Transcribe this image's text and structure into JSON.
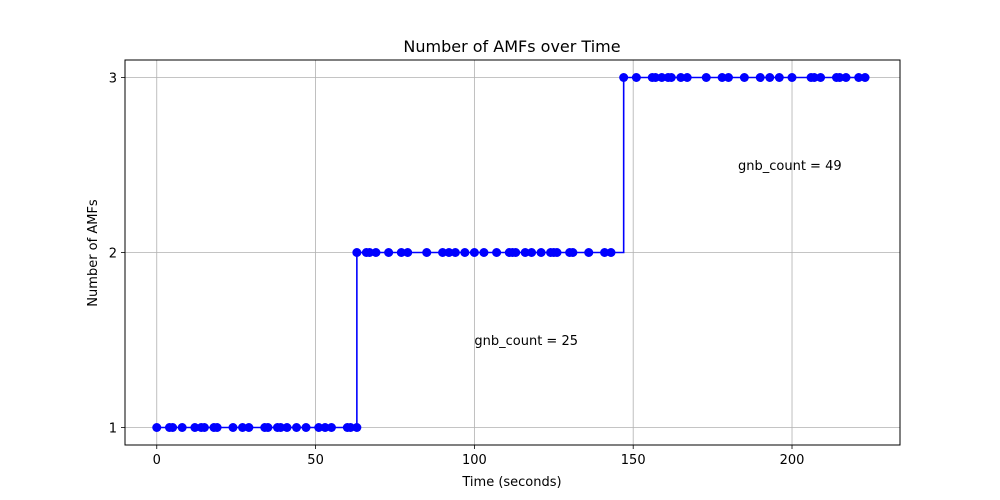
{
  "chart_data": {
    "type": "line",
    "title": "Number of AMFs over Time",
    "xlabel": "Time (seconds)",
    "ylabel": "Number of AMFs",
    "xlim": [
      -10,
      234
    ],
    "ylim": [
      0.9,
      3.1
    ],
    "xticks": [
      0,
      50,
      100,
      150,
      200
    ],
    "xtick_labels": [
      "0",
      "50",
      "100",
      "150",
      "200"
    ],
    "yticks": [
      1,
      2,
      3
    ],
    "ytick_labels": [
      "1",
      "2",
      "3"
    ],
    "grid": true,
    "line_style": "step-post",
    "series": [
      {
        "color": "#0000ff",
        "marker": "circle",
        "points": [
          [
            0,
            1
          ],
          [
            4,
            1
          ],
          [
            5,
            1
          ],
          [
            8,
            1
          ],
          [
            12,
            1
          ],
          [
            14,
            1
          ],
          [
            15,
            1
          ],
          [
            18,
            1
          ],
          [
            19,
            1
          ],
          [
            24,
            1
          ],
          [
            27,
            1
          ],
          [
            29,
            1
          ],
          [
            34,
            1
          ],
          [
            35,
            1
          ],
          [
            38,
            1
          ],
          [
            39,
            1
          ],
          [
            41,
            1
          ],
          [
            44,
            1
          ],
          [
            47,
            1
          ],
          [
            51,
            1
          ],
          [
            53,
            1
          ],
          [
            55,
            1
          ],
          [
            60,
            1
          ],
          [
            61,
            1
          ],
          [
            63,
            1
          ],
          [
            63,
            2
          ],
          [
            66,
            2
          ],
          [
            67,
            2
          ],
          [
            69,
            2
          ],
          [
            73,
            2
          ],
          [
            77,
            2
          ],
          [
            79,
            2
          ],
          [
            85,
            2
          ],
          [
            90,
            2
          ],
          [
            92,
            2
          ],
          [
            94,
            2
          ],
          [
            97,
            2
          ],
          [
            100,
            2
          ],
          [
            103,
            2
          ],
          [
            107,
            2
          ],
          [
            111,
            2
          ],
          [
            112,
            2
          ],
          [
            113,
            2
          ],
          [
            116,
            2
          ],
          [
            118,
            2
          ],
          [
            121,
            2
          ],
          [
            124,
            2
          ],
          [
            125,
            2
          ],
          [
            126,
            2
          ],
          [
            130,
            2
          ],
          [
            131,
            2
          ],
          [
            136,
            2
          ],
          [
            141,
            2
          ],
          [
            143,
            2
          ],
          [
            147,
            3
          ],
          [
            151,
            3
          ],
          [
            156,
            3
          ],
          [
            157,
            3
          ],
          [
            159,
            3
          ],
          [
            161,
            3
          ],
          [
            162,
            3
          ],
          [
            165,
            3
          ],
          [
            167,
            3
          ],
          [
            173,
            3
          ],
          [
            178,
            3
          ],
          [
            180,
            3
          ],
          [
            185,
            3
          ],
          [
            190,
            3
          ],
          [
            193,
            3
          ],
          [
            196,
            3
          ],
          [
            200,
            3
          ],
          [
            206,
            3
          ],
          [
            207,
            3
          ],
          [
            209,
            3
          ],
          [
            214,
            3
          ],
          [
            215,
            3
          ],
          [
            217,
            3
          ],
          [
            221,
            3
          ],
          [
            223,
            3
          ]
        ]
      }
    ],
    "annotations": [
      {
        "text": "gnb_count = 25",
        "x": 100,
        "y": 1.5
      },
      {
        "text": "gnb_count = 49",
        "x": 183,
        "y": 2.5
      }
    ]
  }
}
